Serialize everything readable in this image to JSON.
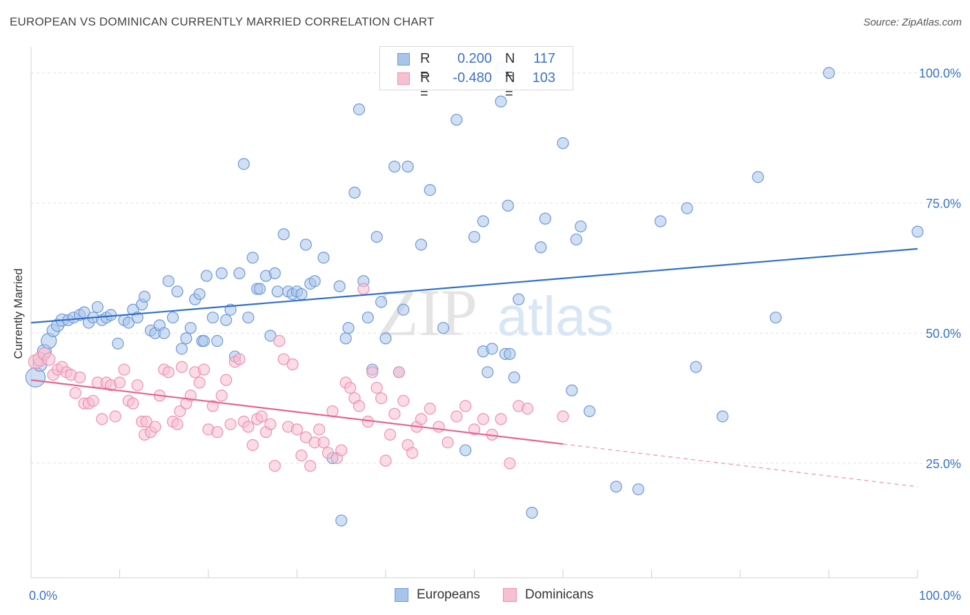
{
  "title": "EUROPEAN VS DOMINICAN CURRENTLY MARRIED CORRELATION CHART",
  "source": "Source: ZipAtlas.com",
  "watermark": {
    "zip": "ZIP",
    "atlas": "atlas"
  },
  "legend_top": {
    "rows": [
      {
        "r_label": "R =",
        "r_value": "0.200",
        "n_label": "N =",
        "n_value": "117",
        "color": "#7ea6e0"
      },
      {
        "r_label": "R =",
        "r_value": "-0.480",
        "n_label": "N =",
        "n_value": "103",
        "color": "#f4a3be"
      }
    ]
  },
  "legend_bottom": [
    {
      "label": "Europeans",
      "color": "#7ea6e0"
    },
    {
      "label": "Dominicans",
      "color": "#f4a3be"
    }
  ],
  "colors": {
    "europeans_fill": "#a9c4ea",
    "europeans_stroke": "#6d98d8",
    "europeans_line": "#2f6fcc",
    "dominicans_fill": "#f7bfd2",
    "dominicans_stroke": "#ee8fb0",
    "dominicans_line": "#e5648f",
    "grid": "#e2e2e2",
    "tick_label": "#3a73c6"
  },
  "chart_data": {
    "type": "scatter",
    "title": "EUROPEAN VS DOMINICAN CURRENTLY MARRIED CORRELATION CHART",
    "xlabel": "",
    "ylabel": "Currently Married",
    "xlim": [
      0,
      100
    ],
    "ylim": [
      3,
      105
    ],
    "x_tick_labels": [
      "0.0%",
      "100.0%"
    ],
    "y_tick_labels": [
      "25.0%",
      "50.0%",
      "75.0%",
      "100.0%"
    ],
    "y_ticks": [
      25,
      50,
      75,
      100
    ],
    "grid": true,
    "legend_position": "top-center",
    "series": [
      {
        "name": "Europeans",
        "r": 0.2,
        "n": 117,
        "trend": {
          "x": [
            0,
            100
          ],
          "y": [
            52.0,
            66.2
          ],
          "dashed_from": null
        },
        "points": [
          [
            0.5,
            41.5,
            14
          ],
          [
            1.0,
            44.0,
            10
          ],
          [
            1.5,
            46.5,
            10
          ],
          [
            2.0,
            48.5,
            11
          ],
          [
            2.5,
            50.5,
            9
          ],
          [
            3.0,
            51.5,
            9
          ],
          [
            3.5,
            52.5,
            9
          ],
          [
            4.2,
            52.5,
            8
          ],
          [
            4.8,
            53.0,
            8
          ],
          [
            5.5,
            53.5,
            8
          ],
          [
            6.0,
            54.0,
            8
          ],
          [
            6.5,
            52.0,
            8
          ],
          [
            7.0,
            53.0,
            8
          ],
          [
            7.5,
            55.0,
            8
          ],
          [
            8.0,
            52.5,
            8
          ],
          [
            8.5,
            53.0,
            8
          ],
          [
            9.0,
            53.5,
            8
          ],
          [
            9.8,
            48.0,
            8
          ],
          [
            10.5,
            52.5,
            8
          ],
          [
            11.0,
            52.0,
            8
          ],
          [
            11.5,
            54.5,
            8
          ],
          [
            12.0,
            53.0,
            8
          ],
          [
            12.5,
            55.5,
            8
          ],
          [
            12.8,
            57.0,
            8
          ],
          [
            13.5,
            50.5,
            8
          ],
          [
            14.0,
            50.0,
            8
          ],
          [
            14.5,
            51.5,
            8
          ],
          [
            15.0,
            50.0,
            8
          ],
          [
            15.5,
            60.0,
            8
          ],
          [
            16.0,
            53.0,
            8
          ],
          [
            16.5,
            58.0,
            8
          ],
          [
            17.0,
            47.0,
            8
          ],
          [
            17.5,
            49.0,
            8
          ],
          [
            18.0,
            51.0,
            8
          ],
          [
            18.5,
            56.5,
            8
          ],
          [
            19.0,
            57.5,
            8
          ],
          [
            19.3,
            48.5,
            8
          ],
          [
            19.5,
            48.5,
            8
          ],
          [
            19.8,
            61.0,
            8
          ],
          [
            20.5,
            53.0,
            8
          ],
          [
            21.0,
            48.5,
            8
          ],
          [
            21.5,
            61.5,
            8
          ],
          [
            22.0,
            52.5,
            8
          ],
          [
            22.5,
            54.5,
            8
          ],
          [
            23.0,
            45.5,
            8
          ],
          [
            23.5,
            61.5,
            8
          ],
          [
            24.0,
            82.5,
            8
          ],
          [
            24.5,
            53.0,
            8
          ],
          [
            25.0,
            64.5,
            8
          ],
          [
            25.5,
            58.5,
            8
          ],
          [
            25.8,
            58.5,
            8
          ],
          [
            26.5,
            61.0,
            8
          ],
          [
            27.0,
            49.5,
            8
          ],
          [
            27.5,
            61.5,
            8
          ],
          [
            27.8,
            58.0,
            8
          ],
          [
            28.5,
            69.0,
            8
          ],
          [
            29.0,
            58.0,
            8
          ],
          [
            29.5,
            57.5,
            8
          ],
          [
            30.0,
            58.0,
            8
          ],
          [
            30.5,
            57.5,
            8
          ],
          [
            31.0,
            67.0,
            8
          ],
          [
            31.5,
            59.5,
            8
          ],
          [
            32.0,
            60.0,
            8
          ],
          [
            33.0,
            64.5,
            8
          ],
          [
            34.0,
            26.0,
            8
          ],
          [
            34.8,
            59.0,
            8
          ],
          [
            35.5,
            49.0,
            8
          ],
          [
            35.8,
            51.0,
            8
          ],
          [
            36.5,
            77.0,
            8
          ],
          [
            37.0,
            93.0,
            8
          ],
          [
            37.5,
            60.0,
            8
          ],
          [
            38.0,
            53.0,
            8
          ],
          [
            38.5,
            43.0,
            8
          ],
          [
            39.0,
            68.5,
            8
          ],
          [
            39.5,
            56.0,
            8
          ],
          [
            40.0,
            49.0,
            8
          ],
          [
            41.0,
            82.0,
            8
          ],
          [
            41.5,
            42.5,
            8
          ],
          [
            42.0,
            54.5,
            8
          ],
          [
            42.5,
            82.0,
            8
          ],
          [
            44.0,
            67.0,
            8
          ],
          [
            45.0,
            77.5,
            8
          ],
          [
            46.5,
            51.0,
            8
          ],
          [
            48.0,
            91.0,
            8
          ],
          [
            49.0,
            27.5,
            8
          ],
          [
            50.0,
            68.5,
            8
          ],
          [
            51.0,
            46.5,
            8
          ],
          [
            51.0,
            71.5,
            8
          ],
          [
            51.5,
            42.5,
            8
          ],
          [
            52.0,
            47.0,
            8
          ],
          [
            53.0,
            94.5,
            8
          ],
          [
            53.5,
            46.0,
            8
          ],
          [
            53.8,
            74.5,
            8
          ],
          [
            54.5,
            41.5,
            8
          ],
          [
            55.0,
            56.5,
            8
          ],
          [
            56.5,
            15.5,
            8
          ],
          [
            57.5,
            66.5,
            8
          ],
          [
            58.0,
            72.0,
            8
          ],
          [
            60.0,
            86.5,
            8
          ],
          [
            61.0,
            39.0,
            8
          ],
          [
            61.5,
            68.0,
            8
          ],
          [
            62.0,
            70.5,
            8
          ],
          [
            63.0,
            35.0,
            8
          ],
          [
            66.0,
            20.5,
            8
          ],
          [
            68.5,
            20.0,
            8
          ],
          [
            71.0,
            71.5,
            8
          ],
          [
            74.0,
            74.0,
            8
          ],
          [
            75.0,
            43.5,
            8
          ],
          [
            78.0,
            34.0,
            8
          ],
          [
            82.0,
            80.0,
            8
          ],
          [
            84.0,
            53.0,
            8
          ],
          [
            90.0,
            100.0,
            8
          ],
          [
            100.0,
            69.5,
            8
          ],
          [
            49.5,
            101.0,
            8
          ],
          [
            53.0,
            101.0,
            8
          ],
          [
            35.0,
            14.0,
            8
          ],
          [
            54.0,
            46.0,
            8
          ]
        ]
      },
      {
        "name": "Dominicans",
        "r": -0.48,
        "n": 103,
        "trend": {
          "x": [
            0,
            100
          ],
          "y": [
            41.0,
            20.5
          ],
          "dashed_from": 60
        },
        "points": [
          [
            0.5,
            44.5,
            10
          ],
          [
            1.0,
            45.0,
            10
          ],
          [
            1.5,
            46.0,
            9
          ],
          [
            2.0,
            45.0,
            9
          ],
          [
            2.5,
            42.0,
            8
          ],
          [
            3.0,
            43.0,
            8
          ],
          [
            3.5,
            43.5,
            8
          ],
          [
            4.0,
            42.5,
            8
          ],
          [
            4.5,
            42.0,
            8
          ],
          [
            5.0,
            38.5,
            8
          ],
          [
            5.5,
            41.5,
            8
          ],
          [
            6.0,
            36.5,
            8
          ],
          [
            6.5,
            36.5,
            8
          ],
          [
            7.0,
            37.0,
            8
          ],
          [
            7.5,
            40.5,
            8
          ],
          [
            8.0,
            33.5,
            8
          ],
          [
            8.5,
            40.5,
            8
          ],
          [
            9.0,
            40.0,
            8
          ],
          [
            9.5,
            34.0,
            8
          ],
          [
            10.0,
            40.5,
            8
          ],
          [
            10.5,
            43.0,
            8
          ],
          [
            11.0,
            37.0,
            8
          ],
          [
            11.5,
            36.5,
            8
          ],
          [
            12.0,
            40.0,
            8
          ],
          [
            12.5,
            33.0,
            8
          ],
          [
            12.8,
            30.5,
            8
          ],
          [
            13.0,
            33.0,
            8
          ],
          [
            13.5,
            31.0,
            8
          ],
          [
            14.0,
            32.0,
            8
          ],
          [
            14.5,
            38.0,
            8
          ],
          [
            15.0,
            43.0,
            8
          ],
          [
            15.5,
            42.5,
            8
          ],
          [
            16.0,
            33.0,
            8
          ],
          [
            16.5,
            32.5,
            8
          ],
          [
            16.8,
            35.0,
            8
          ],
          [
            17.0,
            43.5,
            8
          ],
          [
            17.5,
            36.5,
            8
          ],
          [
            18.0,
            38.0,
            8
          ],
          [
            18.5,
            42.5,
            8
          ],
          [
            19.0,
            40.5,
            8
          ],
          [
            19.5,
            43.0,
            8
          ],
          [
            20.0,
            31.5,
            8
          ],
          [
            20.5,
            36.0,
            8
          ],
          [
            21.0,
            31.0,
            8
          ],
          [
            21.5,
            38.0,
            8
          ],
          [
            22.0,
            41.0,
            8
          ],
          [
            22.5,
            32.5,
            8
          ],
          [
            23.0,
            44.5,
            8
          ],
          [
            23.5,
            45.0,
            8
          ],
          [
            24.0,
            33.0,
            8
          ],
          [
            24.5,
            32.0,
            8
          ],
          [
            25.0,
            28.5,
            8
          ],
          [
            25.5,
            33.5,
            8
          ],
          [
            26.0,
            34.0,
            8
          ],
          [
            26.5,
            31.0,
            8
          ],
          [
            27.0,
            32.5,
            8
          ],
          [
            27.5,
            24.5,
            8
          ],
          [
            28.0,
            48.5,
            8
          ],
          [
            28.5,
            45.0,
            8
          ],
          [
            29.0,
            32.0,
            8
          ],
          [
            29.5,
            44.0,
            8
          ],
          [
            30.0,
            31.5,
            8
          ],
          [
            30.5,
            26.5,
            8
          ],
          [
            31.0,
            30.0,
            8
          ],
          [
            31.5,
            24.5,
            8
          ],
          [
            32.0,
            29.0,
            8
          ],
          [
            32.5,
            31.5,
            8
          ],
          [
            33.0,
            29.0,
            8
          ],
          [
            33.5,
            27.0,
            8
          ],
          [
            34.0,
            35.0,
            8
          ],
          [
            34.5,
            26.0,
            8
          ],
          [
            35.0,
            27.5,
            8
          ],
          [
            35.5,
            40.5,
            8
          ],
          [
            36.0,
            39.5,
            8
          ],
          [
            36.5,
            37.5,
            8
          ],
          [
            37.0,
            36.0,
            8
          ],
          [
            37.5,
            58.5,
            8
          ],
          [
            38.0,
            33.0,
            8
          ],
          [
            38.5,
            42.5,
            8
          ],
          [
            39.0,
            39.5,
            8
          ],
          [
            39.5,
            37.5,
            8
          ],
          [
            40.0,
            25.5,
            8
          ],
          [
            40.5,
            30.5,
            8
          ],
          [
            41.0,
            34.5,
            8
          ],
          [
            41.5,
            42.5,
            8
          ],
          [
            42.0,
            37.0,
            8
          ],
          [
            42.5,
            28.5,
            8
          ],
          [
            43.0,
            27.0,
            8
          ],
          [
            43.5,
            32.0,
            8
          ],
          [
            44.0,
            33.5,
            8
          ],
          [
            45.0,
            35.5,
            8
          ],
          [
            46.0,
            32.0,
            8
          ],
          [
            47.0,
            29.0,
            8
          ],
          [
            48.0,
            34.0,
            8
          ],
          [
            49.0,
            36.0,
            8
          ],
          [
            50.0,
            31.5,
            8
          ],
          [
            51.0,
            33.5,
            8
          ],
          [
            52.0,
            30.5,
            8
          ],
          [
            53.0,
            33.5,
            8
          ],
          [
            54.0,
            25.0,
            8
          ],
          [
            55.0,
            36.0,
            8
          ],
          [
            56.0,
            35.5,
            8
          ],
          [
            60.0,
            34.0,
            8
          ]
        ]
      }
    ]
  }
}
